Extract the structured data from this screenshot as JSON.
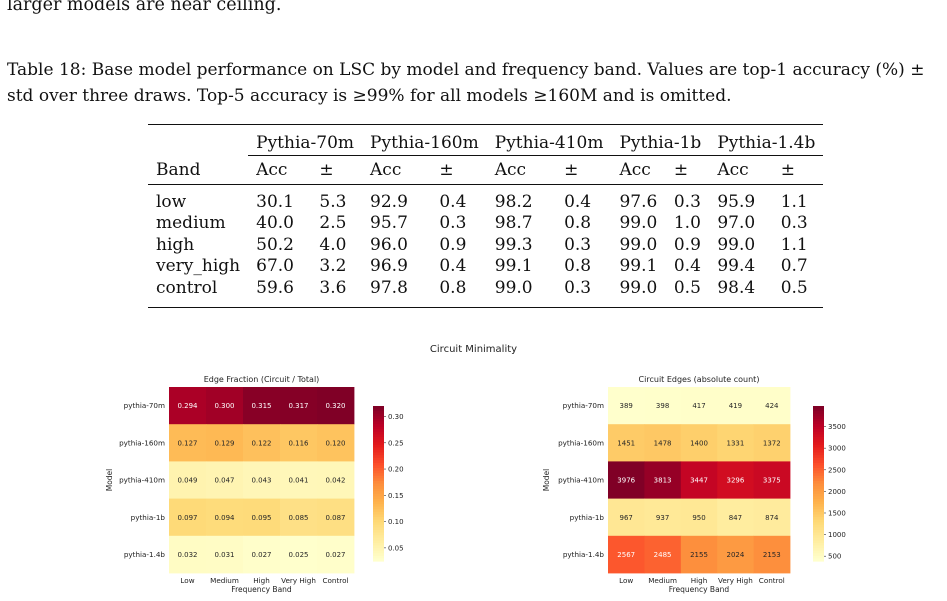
{
  "top_text": "larger models are near ceiling.",
  "caption": "Table 18: Base model performance on LSC by model and frequency band. Values are top-1 accuracy (%) ± std over three draws. Top-5 accuracy is ≥99% for all models ≥160M and is omitted.",
  "table": {
    "band_header": "Band",
    "models": [
      "Pythia-70m",
      "Pythia-160m",
      "Pythia-410m",
      "Pythia-1b",
      "Pythia-1.4b"
    ],
    "acc_label": "Acc",
    "pm_label": "±",
    "rows": [
      {
        "band": "low",
        "cells": [
          "30.1",
          "5.3",
          "92.9",
          "0.4",
          "98.2",
          "0.4",
          "97.6",
          "0.3",
          "95.9",
          "1.1"
        ]
      },
      {
        "band": "medium",
        "cells": [
          "40.0",
          "2.5",
          "95.7",
          "0.3",
          "98.7",
          "0.8",
          "99.0",
          "1.0",
          "97.0",
          "0.3"
        ]
      },
      {
        "band": "high",
        "cells": [
          "50.2",
          "4.0",
          "96.0",
          "0.9",
          "99.3",
          "0.3",
          "99.0",
          "0.9",
          "99.0",
          "1.1"
        ]
      },
      {
        "band": "very_high",
        "cells": [
          "67.0",
          "3.2",
          "96.9",
          "0.4",
          "99.1",
          "0.8",
          "99.1",
          "0.4",
          "99.4",
          "0.7"
        ]
      },
      {
        "band": "control",
        "cells": [
          "59.6",
          "3.6",
          "97.8",
          "0.8",
          "99.0",
          "0.3",
          "99.0",
          "0.5",
          "98.4",
          "0.5"
        ]
      }
    ]
  },
  "figure_title": "Circuit Minimality",
  "chart_data": [
    {
      "type": "heatmap",
      "title": "Edge Fraction (Circuit / Total)",
      "xlabel": "Frequency Band",
      "ylabel": "Model",
      "x": [
        "Low",
        "Medium",
        "High",
        "Very High",
        "Control"
      ],
      "y": [
        "pythia-70m",
        "pythia-160m",
        "pythia-410m",
        "pythia-1b",
        "pythia-1.4b"
      ],
      "values": [
        [
          0.294,
          0.3,
          0.315,
          0.317,
          0.32
        ],
        [
          0.127,
          0.129,
          0.122,
          0.116,
          0.12
        ],
        [
          0.049,
          0.047,
          0.043,
          0.041,
          0.042
        ],
        [
          0.097,
          0.094,
          0.095,
          0.085,
          0.087
        ],
        [
          0.032,
          0.031,
          0.027,
          0.025,
          0.027
        ]
      ],
      "labels": [
        [
          "0.294",
          "0.300",
          "0.315",
          "0.317",
          "0.320"
        ],
        [
          "0.127",
          "0.129",
          "0.122",
          "0.116",
          "0.120"
        ],
        [
          "0.049",
          "0.047",
          "0.043",
          "0.041",
          "0.042"
        ],
        [
          "0.097",
          "0.094",
          "0.095",
          "0.085",
          "0.087"
        ],
        [
          "0.032",
          "0.031",
          "0.027",
          "0.025",
          "0.027"
        ]
      ],
      "colorscale": "YlOrRd",
      "vmin": 0.025,
      "vmax": 0.32,
      "colorbar_ticks": [
        0.05,
        0.1,
        0.15,
        0.2,
        0.25,
        0.3
      ],
      "colorbar_labels": [
        "0.05",
        "0.10",
        "0.15",
        "0.20",
        "0.25",
        "0.30"
      ]
    },
    {
      "type": "heatmap",
      "title": "Circuit Edges (absolute count)",
      "xlabel": "Frequency Band",
      "ylabel": "Model",
      "x": [
        "Low",
        "Medium",
        "High",
        "Very High",
        "Control"
      ],
      "y": [
        "pythia-70m",
        "pythia-160m",
        "pythia-410m",
        "pythia-1b",
        "pythia-1.4b"
      ],
      "values": [
        [
          389,
          398,
          417,
          419,
          424
        ],
        [
          1451,
          1478,
          1400,
          1331,
          1372
        ],
        [
          3976,
          3813,
          3447,
          3296,
          3375
        ],
        [
          967,
          937,
          950,
          847,
          874
        ],
        [
          2567,
          2485,
          2155,
          2024,
          2153
        ]
      ],
      "labels": [
        [
          "389",
          "398",
          "417",
          "419",
          "424"
        ],
        [
          "1451",
          "1478",
          "1400",
          "1331",
          "1372"
        ],
        [
          "3976",
          "3813",
          "3447",
          "3296",
          "3375"
        ],
        [
          "967",
          "937",
          "950",
          "847",
          "874"
        ],
        [
          "2567",
          "2485",
          "2155",
          "2024",
          "2153"
        ]
      ],
      "colorscale": "YlOrRd",
      "vmin": 389,
      "vmax": 3976,
      "colorbar_ticks": [
        500,
        1000,
        1500,
        2000,
        2500,
        3000,
        3500
      ],
      "colorbar_labels": [
        "500",
        "1000",
        "1500",
        "2000",
        "2500",
        "3000",
        "3500"
      ]
    }
  ]
}
